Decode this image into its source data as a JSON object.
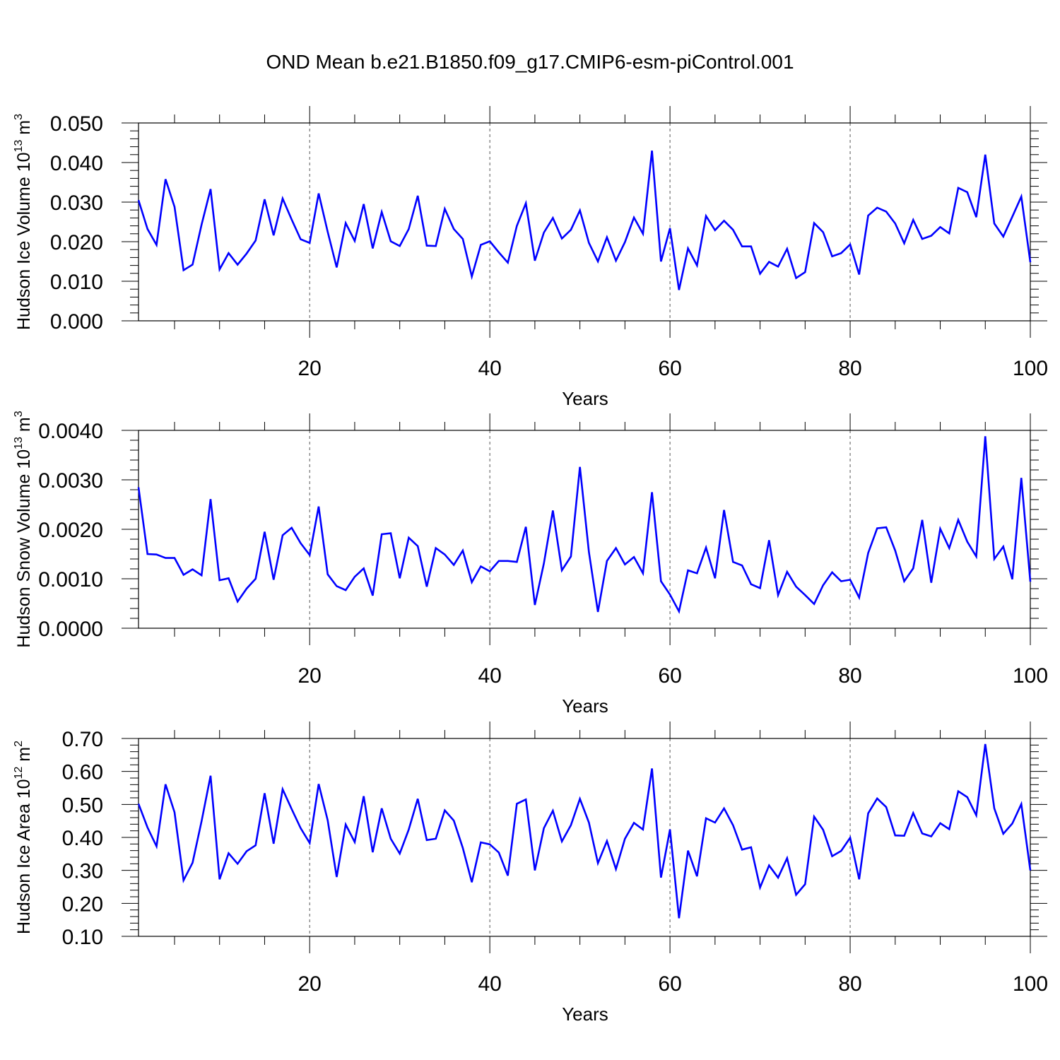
{
  "title": "OND Mean b.e21.B1850.f09_g17.CMIP6-esm-piControl.001",
  "colors": {
    "line": "#0000ff",
    "axis": "#000000",
    "grid": "#555555"
  },
  "chart_data": [
    {
      "type": "line",
      "name": "ice-volume",
      "ylabel": "Hudson Ice Volume 10",
      "ylabel_exponent": "13",
      "ylabel_unit": "m",
      "ylabel_unit_exponent": "3",
      "xlabel": "Years",
      "xlim": [
        1,
        100
      ],
      "ylim": [
        0.0,
        0.05
      ],
      "xticks": [
        20,
        40,
        60,
        80,
        100
      ],
      "yticks": [
        0.0,
        0.01,
        0.02,
        0.03,
        0.04,
        0.05
      ],
      "ytick_labels": [
        "0.000",
        "0.010",
        "0.020",
        "0.030",
        "0.040",
        "0.050"
      ],
      "values": [
        0.0305,
        0.0232,
        0.0192,
        0.0358,
        0.0288,
        0.0128,
        0.0142,
        0.0243,
        0.0333,
        0.013,
        0.0171,
        0.0142,
        0.017,
        0.0203,
        0.0307,
        0.0216,
        0.0309,
        0.0256,
        0.0206,
        0.0197,
        0.0322,
        0.0225,
        0.0135,
        0.0247,
        0.0202,
        0.0295,
        0.0183,
        0.0275,
        0.0201,
        0.0189,
        0.0232,
        0.0316,
        0.019,
        0.0189,
        0.0283,
        0.0232,
        0.0207,
        0.0112,
        0.0192,
        0.0201,
        0.0173,
        0.0147,
        0.024,
        0.0297,
        0.0152,
        0.0223,
        0.026,
        0.0208,
        0.023,
        0.0279,
        0.0197,
        0.015,
        0.0211,
        0.0152,
        0.0199,
        0.0261,
        0.022,
        0.043,
        0.015,
        0.0234,
        0.0078,
        0.0183,
        0.014,
        0.0265,
        0.0229,
        0.0253,
        0.023,
        0.0188,
        0.0188,
        0.0119,
        0.0149,
        0.0137,
        0.0182,
        0.0108,
        0.0123,
        0.0247,
        0.0224,
        0.0163,
        0.0171,
        0.0193,
        0.0117,
        0.0266,
        0.0286,
        0.0276,
        0.0246,
        0.0196,
        0.0255,
        0.0207,
        0.0215,
        0.0237,
        0.0221,
        0.0336,
        0.0325,
        0.0262,
        0.042,
        0.0246,
        0.0213,
        0.0263,
        0.0314,
        0.0148
      ]
    },
    {
      "type": "line",
      "name": "snow-volume",
      "ylabel": "Hudson Snow Volume 10",
      "ylabel_exponent": "13",
      "ylabel_unit": "m",
      "ylabel_unit_exponent": "3",
      "xlabel": "Years",
      "xlim": [
        1,
        100
      ],
      "ylim": [
        0.0,
        0.004
      ],
      "xticks": [
        20,
        40,
        60,
        80,
        100
      ],
      "yticks": [
        0.0,
        0.001,
        0.002,
        0.003,
        0.004
      ],
      "ytick_labels": [
        "0.0000",
        "0.0010",
        "0.0020",
        "0.0030",
        "0.0040"
      ],
      "values": [
        0.00285,
        0.0015,
        0.00149,
        0.00142,
        0.00142,
        0.00108,
        0.00119,
        0.00107,
        0.00261,
        0.00097,
        0.00101,
        0.00054,
        0.0008,
        0.001,
        0.00195,
        0.00098,
        0.00188,
        0.00203,
        0.00172,
        0.00148,
        0.00246,
        0.00109,
        0.00085,
        0.00077,
        0.00104,
        0.00121,
        0.00066,
        0.0019,
        0.00192,
        0.00101,
        0.00183,
        0.00166,
        0.00084,
        0.00162,
        0.00149,
        0.00128,
        0.00157,
        0.00093,
        0.00125,
        0.00115,
        0.00136,
        0.00136,
        0.00134,
        0.00205,
        0.00047,
        0.00131,
        0.00238,
        0.00117,
        0.00145,
        0.00326,
        0.00154,
        0.00033,
        0.00136,
        0.00162,
        0.00129,
        0.00144,
        0.00111,
        0.00275,
        0.00095,
        0.00068,
        0.00034,
        0.00117,
        0.00111,
        0.00163,
        0.00101,
        0.00239,
        0.00134,
        0.00127,
        0.00089,
        0.00081,
        0.00178,
        0.00067,
        0.00114,
        0.00084,
        0.00067,
        0.00049,
        0.00087,
        0.00113,
        0.00095,
        0.00098,
        0.00062,
        0.00152,
        0.00202,
        0.00204,
        0.00157,
        0.00095,
        0.00121,
        0.00219,
        0.00092,
        0.00201,
        0.00162,
        0.00219,
        0.00175,
        0.00145,
        0.00388,
        0.0014,
        0.00165,
        0.00099,
        0.00304,
        0.00094
      ]
    },
    {
      "type": "line",
      "name": "ice-area",
      "ylabel": "Hudson Ice Area 10",
      "ylabel_exponent": "12",
      "ylabel_unit": "m",
      "ylabel_unit_exponent": "2",
      "xlabel": "Years",
      "xlim": [
        1,
        100
      ],
      "ylim": [
        0.1,
        0.7
      ],
      "xticks": [
        20,
        40,
        60,
        80,
        100
      ],
      "yticks": [
        0.1,
        0.2,
        0.3,
        0.4,
        0.5,
        0.6,
        0.7
      ],
      "ytick_labels": [
        "0.10",
        "0.20",
        "0.30",
        "0.40",
        "0.50",
        "0.60",
        "0.70"
      ],
      "values": [
        0.502,
        0.43,
        0.373,
        0.561,
        0.476,
        0.27,
        0.323,
        0.449,
        0.587,
        0.273,
        0.352,
        0.32,
        0.358,
        0.376,
        0.534,
        0.381,
        0.546,
        0.486,
        0.428,
        0.383,
        0.562,
        0.452,
        0.28,
        0.439,
        0.386,
        0.525,
        0.355,
        0.488,
        0.396,
        0.351,
        0.424,
        0.517,
        0.392,
        0.396,
        0.482,
        0.451,
        0.368,
        0.264,
        0.385,
        0.379,
        0.354,
        0.284,
        0.502,
        0.515,
        0.3,
        0.428,
        0.481,
        0.388,
        0.437,
        0.517,
        0.445,
        0.322,
        0.389,
        0.304,
        0.396,
        0.444,
        0.424,
        0.609,
        0.278,
        0.424,
        0.155,
        0.36,
        0.282,
        0.458,
        0.445,
        0.488,
        0.437,
        0.363,
        0.37,
        0.248,
        0.315,
        0.278,
        0.337,
        0.226,
        0.258,
        0.463,
        0.423,
        0.343,
        0.359,
        0.399,
        0.273,
        0.473,
        0.518,
        0.492,
        0.406,
        0.405,
        0.474,
        0.412,
        0.403,
        0.443,
        0.425,
        0.54,
        0.522,
        0.467,
        0.683,
        0.488,
        0.411,
        0.442,
        0.501,
        0.3
      ]
    }
  ]
}
